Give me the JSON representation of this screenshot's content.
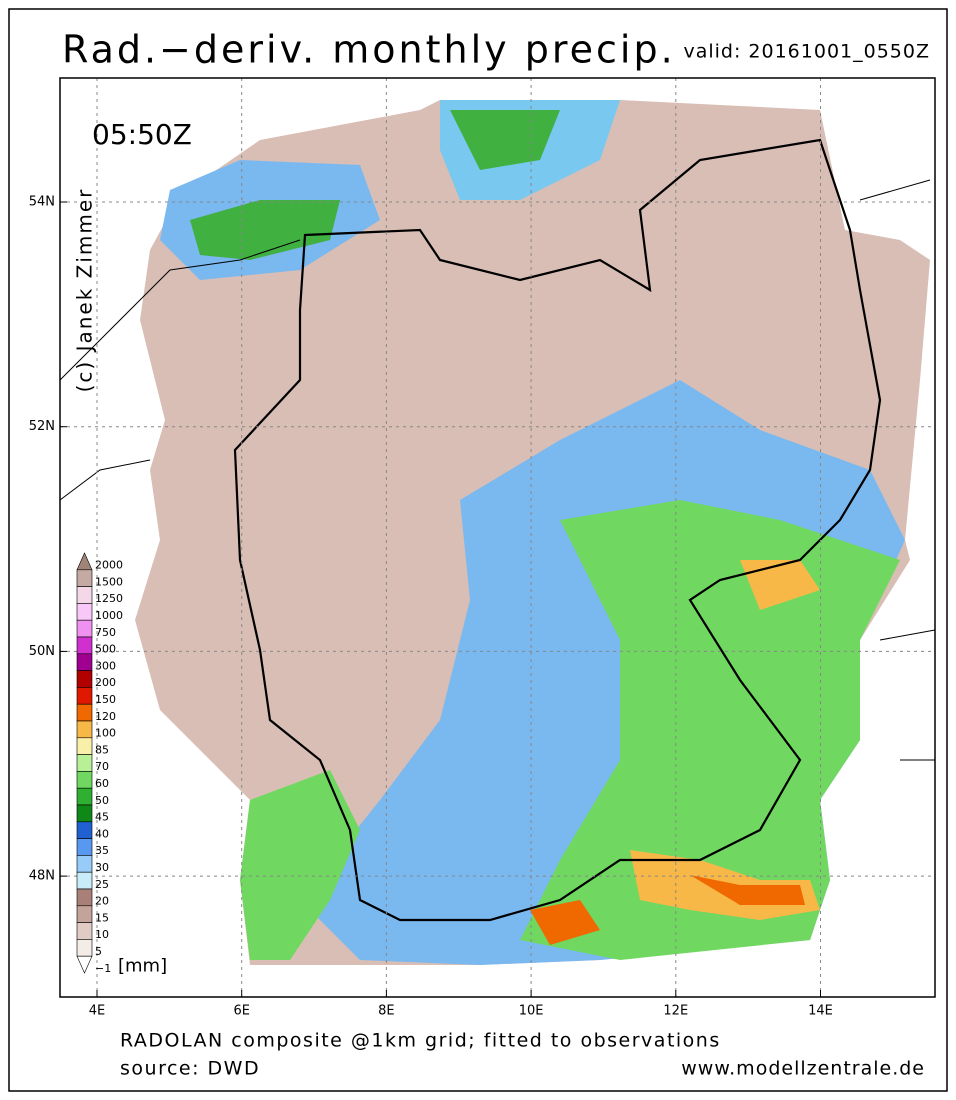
{
  "header": {
    "title": "Rad.−deriv. monthly precip.",
    "valid": "valid: 20161001_0550Z"
  },
  "map": {
    "time": "05:50Z",
    "credit": "(c) Janek Zimmer",
    "lon_labels": [
      "4E",
      "6E",
      "8E",
      "10E",
      "12E",
      "14E"
    ],
    "lat_labels": [
      "54N",
      "52N",
      "50N",
      "48N"
    ]
  },
  "legend": {
    "unit": "[mm]",
    "entries": [
      {
        "label": "2000",
        "color": "#a08478"
      },
      {
        "label": "1500",
        "color": "#c4aaa2"
      },
      {
        "label": "1250",
        "color": "#f4d8e8"
      },
      {
        "label": "1000",
        "color": "#f8c8f8"
      },
      {
        "label": "750",
        "color": "#f090f0"
      },
      {
        "label": "500",
        "color": "#d030d0"
      },
      {
        "label": "300",
        "color": "#a00090"
      },
      {
        "label": "200",
        "color": "#b00000"
      },
      {
        "label": "150",
        "color": "#e01800"
      },
      {
        "label": "120",
        "color": "#f06800"
      },
      {
        "label": "100",
        "color": "#f8b848"
      },
      {
        "label": "85",
        "color": "#f8f0a8"
      },
      {
        "label": "70",
        "color": "#b8f098"
      },
      {
        "label": "60",
        "color": "#70d860"
      },
      {
        "label": "50",
        "color": "#30b030"
      },
      {
        "label": "45",
        "color": "#108818"
      },
      {
        "label": "40",
        "color": "#2060d0"
      },
      {
        "label": "35",
        "color": "#5898f0"
      },
      {
        "label": "30",
        "color": "#98ccf8"
      },
      {
        "label": "25",
        "color": "#c8ecf8"
      },
      {
        "label": "20",
        "color": "#a88078"
      },
      {
        "label": "15",
        "color": "#c4a49a"
      },
      {
        "label": "10",
        "color": "#e0ccc4"
      },
      {
        "label": "5",
        "color": "#f4ece6"
      },
      {
        "label": "−1",
        "color": "#ffffff"
      }
    ]
  },
  "footer": {
    "line1": "RADOLAN composite @1km grid; fitted to observations",
    "line2": "source: DWD",
    "url": "www.modellzentrale.de"
  }
}
